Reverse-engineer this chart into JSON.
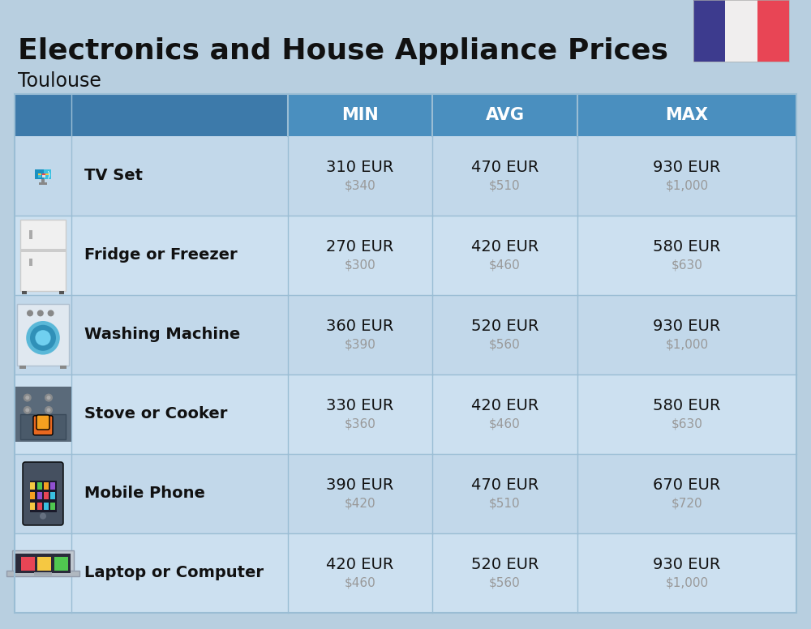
{
  "title": "Electronics and House Appliance Prices",
  "subtitle": "Toulouse",
  "bg_color": "#b8cfe0",
  "header_color": "#4a8fbf",
  "header_text_color": "#ffffff",
  "row_color_a": "#c2d8ea",
  "row_color_b": "#cce0f0",
  "text_color": "#111111",
  "sub_text_color": "#999999",
  "columns": [
    "MIN",
    "AVG",
    "MAX"
  ],
  "rows": [
    {
      "label": "TV Set",
      "min_eur": "310 EUR",
      "min_usd": "$340",
      "avg_eur": "470 EUR",
      "avg_usd": "$510",
      "max_eur": "930 EUR",
      "max_usd": "$1,000"
    },
    {
      "label": "Fridge or Freezer",
      "min_eur": "270 EUR",
      "min_usd": "$300",
      "avg_eur": "420 EUR",
      "avg_usd": "$460",
      "max_eur": "580 EUR",
      "max_usd": "$630"
    },
    {
      "label": "Washing Machine",
      "min_eur": "360 EUR",
      "min_usd": "$390",
      "avg_eur": "520 EUR",
      "avg_usd": "$560",
      "max_eur": "930 EUR",
      "max_usd": "$1,000"
    },
    {
      "label": "Stove or Cooker",
      "min_eur": "330 EUR",
      "min_usd": "$360",
      "avg_eur": "420 EUR",
      "avg_usd": "$460",
      "max_eur": "580 EUR",
      "max_usd": "$630"
    },
    {
      "label": "Mobile Phone",
      "min_eur": "390 EUR",
      "min_usd": "$420",
      "avg_eur": "470 EUR",
      "avg_usd": "$510",
      "max_eur": "670 EUR",
      "max_usd": "$720"
    },
    {
      "label": "Laptop or Computer",
      "min_eur": "420 EUR",
      "min_usd": "$460",
      "avg_eur": "520 EUR",
      "avg_usd": "$560",
      "max_eur": "930 EUR",
      "max_usd": "$1,000"
    }
  ],
  "flag_blue": "#3d3b8e",
  "flag_white": "#f0eeee",
  "flag_red": "#e84555",
  "divider_color": "#9abdd4",
  "header_dark": "#3d7aaa"
}
